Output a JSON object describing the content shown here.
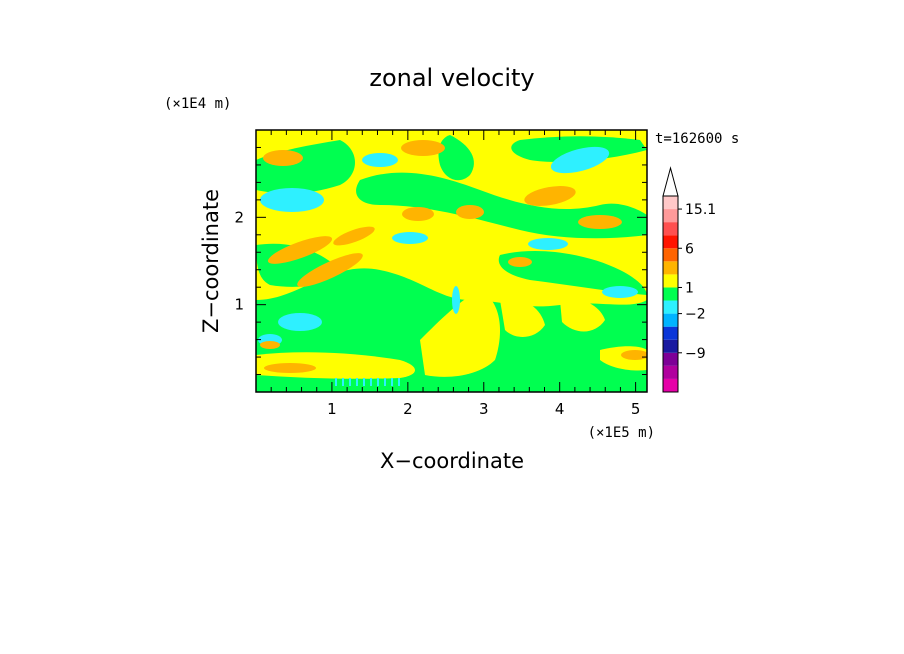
{
  "chart_data": {
    "type": "heatmap",
    "title": "zonal velocity",
    "xlabel": "X−coordinate",
    "ylabel": "Z−coordinate",
    "x_unit_label": "(×1E5 m)",
    "y_unit_label": "(×1E4 m)",
    "time_label": "t=162600 s",
    "xlim": [
      0,
      5.15
    ],
    "ylim": [
      0,
      3.0
    ],
    "x_ticks": [
      1,
      2,
      3,
      4,
      5
    ],
    "x_tick_labels": [
      "1",
      "2",
      "3",
      "4",
      "5"
    ],
    "y_ticks": [
      1,
      2
    ],
    "y_tick_labels": [
      "1",
      "2"
    ],
    "colorbar": {
      "labels": [
        {
          "text": "15.1",
          "level": 14
        },
        {
          "text": "6",
          "level": 11
        },
        {
          "text": "1",
          "level": 8
        },
        {
          "text": "−2",
          "level": 6
        },
        {
          "text": "−9",
          "level": 3
        }
      ],
      "extend_top_color": "#ffffff",
      "segments": [
        {
          "color": "#e600a8"
        },
        {
          "color": "#b0009e"
        },
        {
          "color": "#7d0097"
        },
        {
          "color": "#1a1aa0"
        },
        {
          "color": "#0a36d8"
        },
        {
          "color": "#00b4ff"
        },
        {
          "color": "#2ef0ff"
        },
        {
          "color": "#00ff50"
        },
        {
          "color": "#ffff00"
        },
        {
          "color": "#ffb400"
        },
        {
          "color": "#ff6400"
        },
        {
          "color": "#ff1400"
        },
        {
          "color": "#ff5050"
        },
        {
          "color": "#ff9a9a"
        },
        {
          "color": "#ffc8c8"
        }
      ]
    },
    "dominant_field_colors": {
      "background": "#ffff00",
      "slow": "#00ff50",
      "negative": "#2ef0ff",
      "positive": "#ffb400"
    }
  }
}
